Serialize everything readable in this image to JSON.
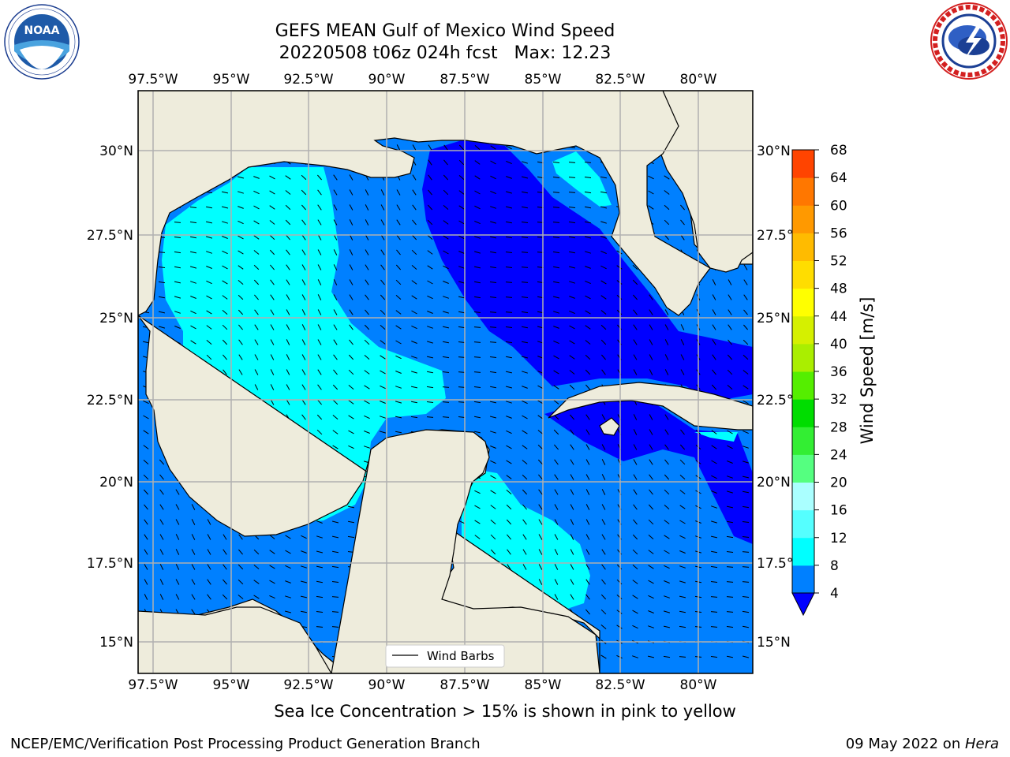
{
  "title": {
    "line1": "GEFS MEAN Gulf of Mexico Wind Speed",
    "line2": "20220508 t06z 024h fcst   Max: 12.23"
  },
  "logos": {
    "noaa": {
      "text": "NOAA",
      "ring_text": "NATIONAL OCEANIC AND ATMOSPHERIC ADMINISTRATION · U.S. DEPARTMENT OF COMMERCE"
    },
    "nws": {
      "ring_text": "NATIONAL WEATHER SERVICE"
    }
  },
  "map": {
    "lon_ticks": [
      "97.5°W",
      "95°W",
      "92.5°W",
      "90°W",
      "87.5°W",
      "85°W",
      "82.5°W",
      "80°W"
    ],
    "lat_ticks": [
      "30°N",
      "27.5°N",
      "25°N",
      "22.5°N",
      "20°N",
      "17.5°N",
      "15°N"
    ],
    "legend_label": "Wind Barbs",
    "colors": {
      "land": "#eeecdc",
      "level_4_8": "#0080ff",
      "level_below_4": "#0000ff",
      "level_8_12": "#00ffff",
      "level_12_16": "#ccffff"
    }
  },
  "colorbar": {
    "label": "Wind Speed [m/s]",
    "ticks": [
      "4",
      "8",
      "12",
      "16",
      "20",
      "24",
      "28",
      "32",
      "36",
      "40",
      "44",
      "48",
      "52",
      "56",
      "60",
      "64",
      "68"
    ],
    "colors": [
      "#0080ff",
      "#00ffff",
      "#55ffff",
      "#aaffff",
      "#55ff80",
      "#33ee33",
      "#00dd00",
      "#55ee00",
      "#aaee00",
      "#d5f000",
      "#ffff00",
      "#ffdd00",
      "#ffbb00",
      "#ff9900",
      "#ff7700",
      "#ff4400",
      "#ff0000"
    ],
    "under_color": "#0000ff"
  },
  "footnote": "Sea Ice Concentration > 15% is shown in pink to yellow",
  "footer": {
    "left": "NCEP/EMC/Verification Post Processing Product Generation Branch",
    "right_date": "09 May 2022 on ",
    "right_host": "Hera"
  }
}
